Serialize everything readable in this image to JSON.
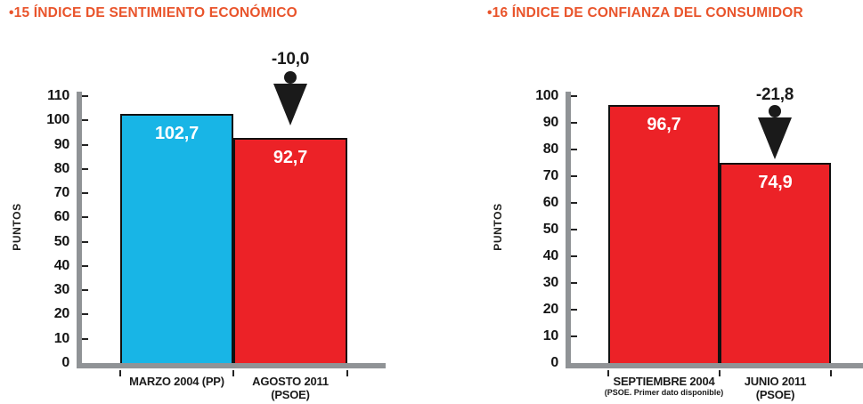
{
  "page": {
    "background": "#FFFFFF"
  },
  "colors": {
    "title_orange": "#E9542B",
    "bar_cyan": "#18B5E6",
    "bar_red": "#EC2227",
    "axis_gray": "#909396",
    "text_black": "#1A1A1A",
    "value_label_white": "#FFFFFF"
  },
  "chart_data": [
    {
      "type": "bar",
      "title": "•15 ÍNDICE DE SENTIMIENTO ECONÓMICO",
      "ylabel": "PUNTOS",
      "ylim": [
        0,
        110
      ],
      "ytick_step": 10,
      "grid": false,
      "categories": [
        {
          "label": "MARZO 2004 (PP)",
          "sublabel": "",
          "sublabel_small": false
        },
        {
          "label": "AGOSTO 2011",
          "sublabel": "(PSOE)",
          "sublabel_small": false
        }
      ],
      "values": [
        102.7,
        92.7
      ],
      "value_labels": [
        "102,7",
        "92,7"
      ],
      "bar_colors": [
        "#18B5E6",
        "#EC2227"
      ],
      "annotation": {
        "text": "-10,0",
        "target_bar_index": 1
      }
    },
    {
      "type": "bar",
      "title": "•16 ÍNDICE DE CONFIANZA DEL CONSUMIDOR",
      "ylabel": "PUNTOS",
      "ylim": [
        0,
        100
      ],
      "ytick_step": 10,
      "grid": false,
      "categories": [
        {
          "label": "SEPTIEMBRE 2004",
          "sublabel": "(PSOE. Primer dato disponible)",
          "sublabel_small": true
        },
        {
          "label": "JUNIO 2011",
          "sublabel": "(PSOE)",
          "sublabel_small": false
        }
      ],
      "values": [
        96.7,
        74.9
      ],
      "value_labels": [
        "96,7",
        "74,9"
      ],
      "bar_colors": [
        "#EC2227",
        "#EC2227"
      ],
      "annotation": {
        "text": "-21,8",
        "target_bar_index": 1
      }
    }
  ]
}
